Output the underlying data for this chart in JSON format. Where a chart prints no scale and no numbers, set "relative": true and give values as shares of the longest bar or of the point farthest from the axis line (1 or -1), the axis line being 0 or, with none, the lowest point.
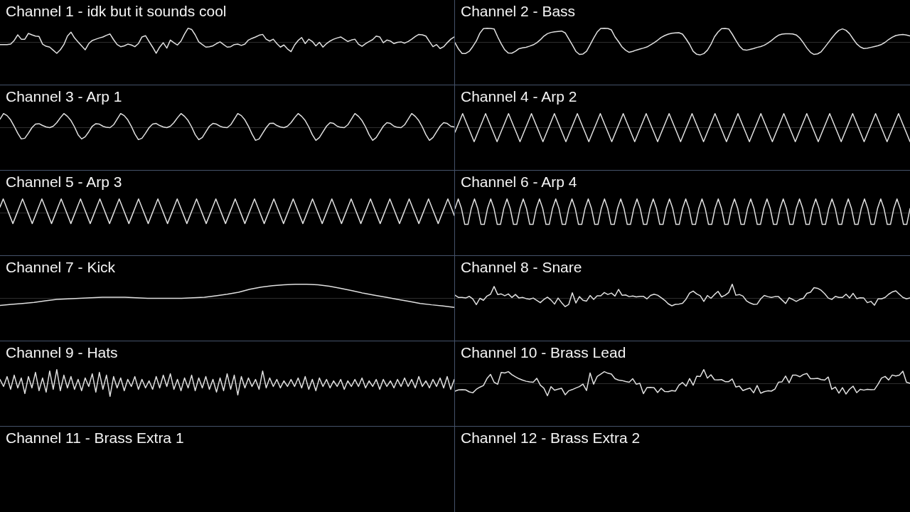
{
  "chart_data": [
    {
      "type": "line",
      "title": "Channel 1 - idk but it sounds cool",
      "relative": true,
      "marker": "none",
      "color": "#e0e0e0",
      "categories": [
        null,
        null,
        null,
        null,
        null,
        null,
        null,
        null,
        null,
        null,
        null,
        null,
        null,
        null,
        null,
        null,
        null,
        null,
        null,
        null,
        null,
        null,
        null,
        null,
        null,
        null,
        null,
        null,
        null,
        null,
        null,
        null,
        null,
        null,
        null,
        null,
        null,
        null,
        null,
        null,
        null,
        null,
        null,
        null,
        null,
        null,
        null,
        null,
        null,
        null,
        null,
        null,
        null,
        null,
        null,
        null,
        null,
        null,
        null,
        null,
        null,
        null,
        null,
        null,
        null,
        null,
        null,
        null,
        null,
        null,
        null,
        null,
        null,
        null,
        null,
        null,
        null,
        null,
        null,
        null,
        null,
        null,
        null,
        null,
        null,
        null,
        null,
        null,
        null,
        null,
        null,
        null,
        null,
        null,
        null,
        null,
        null,
        null,
        null,
        null,
        null,
        null,
        null,
        null,
        null,
        null,
        null,
        null,
        null,
        null,
        null,
        null,
        null,
        null,
        null,
        null,
        null,
        null,
        null,
        null,
        null,
        null,
        null,
        null,
        null,
        null,
        null,
        null,
        null
      ],
      "values": [
        -0.16,
        -0.16,
        -0.16,
        -0.13,
        0.13,
        0.53,
        0.22,
        0.22,
        0.63,
        0.53,
        0.44,
        0.41,
        -0.13,
        -0.28,
        -0.34,
        -0.56,
        -0.78,
        -0.53,
        -0.16,
        0.44,
        0.72,
        0.31,
        0.03,
        -0.25,
        -0.53,
        -0.09,
        0.13,
        0.22,
        0.31,
        0.38,
        0.5,
        0.59,
        0.19,
        -0.16,
        -0.31,
        -0.25,
        -0.13,
        -0.19,
        -0.31,
        -0.09,
        0.38,
        0.47,
        0.06,
        -0.34,
        -0.78,
        -0.34,
        -0.03,
        -0.41,
        0.16,
        -0.03,
        -0.19,
        0.09,
        0.59,
        1,
        0.91,
        0.53,
        0.03,
        -0.16,
        -0.34,
        -0.31,
        -0.25,
        -0.09,
        0.03,
        -0.16,
        -0.34,
        -0.31,
        -0.16,
        -0.13,
        -0.22,
        -0.13,
        0.16,
        0.28,
        0.38,
        0.5,
        0.56,
        0.22,
        0.09,
        0.22,
        -0.09,
        -0.34,
        -0.19,
        -0.47,
        -0.66,
        -0.19,
        0.13,
        0.34,
        -0.09,
        0.22,
        0.06,
        -0.25,
        0,
        -0.34,
        -0.09,
        0.09,
        0.22,
        0.31,
        0.38,
        0.22,
        0.06,
        0.16,
        0.22,
        -0.13,
        -0.28,
        -0.09,
        0.06,
        0.19,
        0.44,
        0.38,
        -0.03,
        0.16,
        0.09,
        -0.09,
        0,
        0.03,
        -0.06,
        0.06,
        0.22,
        0.41,
        0.56,
        0.53,
        0.44,
        0.06,
        -0.31,
        -0.16,
        -0.44,
        -0.31,
        -0.03,
        0.22,
        0.38
      ]
    },
    {
      "type": "line",
      "title": "Channel 2 - Bass",
      "relative": true,
      "marker": "none",
      "color": "#e0e0e0",
      "categories": [
        null,
        null,
        null,
        null,
        null,
        null,
        null,
        null,
        null,
        null,
        null,
        null,
        null,
        null,
        null,
        null,
        null,
        null,
        null,
        null,
        null,
        null,
        null,
        null,
        null,
        null,
        null,
        null,
        null,
        null,
        null,
        null,
        null,
        null,
        null,
        null,
        null,
        null,
        null,
        null,
        null,
        null,
        null,
        null,
        null,
        null,
        null,
        null,
        null,
        null,
        null,
        null,
        null,
        null,
        null,
        null,
        null,
        null,
        null,
        null,
        null,
        null,
        null,
        null,
        null,
        null,
        null,
        null,
        null,
        null,
        null,
        null,
        null,
        null,
        null,
        null,
        null,
        null,
        null,
        null,
        null,
        null,
        null,
        null,
        null,
        null,
        null,
        null,
        null,
        null,
        null,
        null,
        null,
        null,
        null,
        null,
        null,
        null,
        null,
        null,
        null,
        null,
        null,
        null,
        null,
        null,
        null,
        null,
        null,
        null,
        null,
        null,
        null,
        null,
        null,
        null,
        null,
        null,
        null,
        null,
        null,
        null,
        null,
        null,
        null,
        null,
        null,
        null,
        null
      ],
      "values": [
        -0.03,
        -0.48,
        -0.79,
        -0.79,
        -0.64,
        -0.3,
        0.09,
        0.65,
        0.97,
        1,
        0.98,
        0.95,
        0.39,
        -0.11,
        -0.53,
        -0.76,
        -0.77,
        -0.64,
        -0.45,
        -0.39,
        -0.35,
        -0.27,
        -0.18,
        -0.03,
        0.18,
        0.44,
        0.61,
        0.7,
        0.74,
        0.77,
        0.8,
        0.67,
        0.24,
        -0.18,
        -0.64,
        -0.86,
        -0.83,
        -0.64,
        -0.18,
        0.3,
        0.73,
        0.98,
        1,
        0.98,
        0.88,
        0.39,
        0.05,
        -0.33,
        -0.56,
        -0.71,
        -0.64,
        -0.55,
        -0.48,
        -0.41,
        -0.33,
        -0.18,
        -0.03,
        0.15,
        0.35,
        0.48,
        0.58,
        0.64,
        0.67,
        0.68,
        0.58,
        0.24,
        -0.15,
        -0.64,
        -0.85,
        -0.89,
        -0.8,
        -0.56,
        -0.15,
        0.39,
        0.73,
        0.97,
        0.98,
        0.95,
        0.58,
        0.15,
        -0.26,
        -0.52,
        -0.56,
        -0.5,
        -0.44,
        -0.36,
        -0.3,
        -0.21,
        -0.06,
        0.12,
        0.33,
        0.5,
        0.58,
        0.61,
        0.61,
        0.59,
        0.52,
        0.3,
        -0.03,
        -0.41,
        -0.71,
        -0.86,
        -0.82,
        -0.67,
        -0.36,
        -0.03,
        0.3,
        0.61,
        0.85,
        0.95,
        0.85,
        0.61,
        0.24,
        -0.11,
        -0.33,
        -0.44,
        -0.42,
        -0.36,
        -0.3,
        -0.24,
        -0.15,
        0,
        0.2,
        0.36,
        0.48,
        0.53,
        0.55,
        0.52,
        0.45
      ]
    },
    {
      "type": "line",
      "title": "Channel 3 - Arp 1",
      "relative": true,
      "marker": "none",
      "color": "#e0e0e0",
      "categories": [
        null,
        null,
        null,
        null,
        null,
        null,
        null,
        null,
        null,
        null,
        null,
        null,
        null,
        null,
        null,
        null,
        null,
        null,
        null,
        null,
        null,
        null,
        null,
        null,
        null,
        null,
        null,
        null,
        null,
        null,
        null,
        null,
        null,
        null,
        null,
        null,
        null,
        null,
        null,
        null,
        null,
        null,
        null,
        null,
        null,
        null,
        null,
        null,
        null,
        null,
        null,
        null,
        null,
        null,
        null,
        null,
        null,
        null,
        null,
        null,
        null,
        null,
        null,
        null,
        null,
        null,
        null,
        null,
        null,
        null,
        null,
        null,
        null,
        null,
        null,
        null,
        null,
        null,
        null,
        null,
        null,
        null,
        null,
        null,
        null,
        null,
        null,
        null,
        null,
        null,
        null,
        null,
        null,
        null,
        null,
        null,
        null,
        null,
        null,
        null,
        null,
        null,
        null,
        null,
        null,
        null,
        null,
        null,
        null,
        null,
        null,
        null,
        null,
        null,
        null,
        null,
        null,
        null,
        null,
        null,
        null,
        null,
        null,
        null,
        null,
        null,
        null,
        null,
        null
      ],
      "values": [
        0.6,
        1,
        0.85,
        0.55,
        0.1,
        -0.4,
        -0.8,
        -0.75,
        -0.4,
        0,
        0.25,
        0.28,
        0.15,
        0.05,
        0,
        0.1,
        0.35,
        0.7,
        1,
        0.8,
        0.5,
        0.05,
        -0.5,
        -0.8,
        -0.65,
        -0.3,
        0.1,
        0.28,
        0.25,
        0.1,
        0.02,
        0,
        0.2,
        0.6,
        1,
        0.85,
        0.55,
        0.1,
        -0.45,
        -0.85,
        -0.75,
        -0.4,
        0,
        0.25,
        0.3,
        0.15,
        0.05,
        0,
        0.1,
        0.35,
        0.7,
        1,
        0.8,
        0.5,
        0.05,
        -0.5,
        -0.85,
        -0.7,
        -0.3,
        0.1,
        0.3,
        0.25,
        0.1,
        0.02,
        0,
        0.2,
        0.6,
        1,
        0.85,
        0.55,
        0.1,
        -0.45,
        -0.9,
        -0.8,
        -0.4,
        0,
        0.3,
        0.32,
        0.15,
        0.05,
        0,
        0.1,
        0.35,
        0.7,
        1,
        0.8,
        0.5,
        0.05,
        -0.5,
        -0.9,
        -0.7,
        -0.3,
        0.1,
        0.35,
        0.3,
        0.1,
        0.02,
        0,
        0.2,
        0.6,
        1,
        0.8,
        0.5,
        0.05,
        -0.5,
        -0.9,
        -0.7,
        -0.3,
        0.1,
        0.35,
        0.3,
        0.1,
        0.02,
        0,
        0.2,
        0.6,
        1,
        0.8,
        0.5,
        0.05,
        -0.5,
        -0.9,
        -0.7,
        -0.3,
        0.1,
        0.35,
        0.3,
        0.1,
        0.05
      ]
    },
    {
      "type": "line",
      "title": "Channel 4 - Arp 2",
      "relative": true,
      "marker": "none",
      "color": "#e0e0e0",
      "categories": [
        null,
        null,
        null,
        null,
        null,
        null,
        null,
        null,
        null,
        null,
        null,
        null,
        null,
        null,
        null,
        null,
        null,
        null,
        null,
        null,
        null,
        null,
        null,
        null,
        null,
        null,
        null,
        null,
        null,
        null,
        null,
        null,
        null,
        null,
        null,
        null,
        null,
        null,
        null,
        null,
        null,
        null,
        null,
        null,
        null,
        null,
        null,
        null,
        null,
        null,
        null,
        null,
        null,
        null,
        null,
        null,
        null,
        null,
        null,
        null,
        null,
        null,
        null,
        null,
        null,
        null,
        null,
        null,
        null,
        null,
        null,
        null,
        null,
        null,
        null,
        null,
        null,
        null,
        null,
        null,
        null,
        null,
        null,
        null,
        null,
        null,
        null,
        null,
        null,
        null,
        null,
        null,
        null,
        null,
        null,
        null,
        null,
        null,
        null,
        null,
        null,
        null,
        null,
        null,
        null,
        null,
        null,
        null,
        null,
        null,
        null,
        null,
        null,
        null,
        null,
        null,
        null,
        null,
        null,
        null
      ],
      "values": [
        -0.33,
        0.33,
        1,
        0.33,
        -0.33,
        -1,
        -0.33,
        0.33,
        1,
        0.33,
        -0.33,
        -1,
        -0.33,
        0.33,
        1,
        0.33,
        -0.33,
        -1,
        -0.33,
        0.33,
        1,
        0.33,
        -0.33,
        -1,
        -0.33,
        0.33,
        1,
        0.33,
        -0.33,
        -1,
        -0.33,
        0.33,
        1,
        0.33,
        -0.33,
        -1,
        -0.33,
        0.33,
        1,
        0.33,
        -0.33,
        -1,
        -0.33,
        0.33,
        1,
        0.33,
        -0.33,
        -1,
        -0.33,
        0.33,
        1,
        0.33,
        -0.33,
        -1,
        -0.33,
        0.33,
        1,
        0.33,
        -0.33,
        -1,
        -0.33,
        0.33,
        1,
        0.33,
        -0.33,
        -1,
        -0.33,
        0.33,
        1,
        0.33,
        -0.33,
        -1,
        -0.33,
        0.33,
        1,
        0.33,
        -0.33,
        -1,
        -0.33,
        0.33,
        1,
        0.33,
        -0.33,
        -1,
        -0.33,
        0.33,
        1,
        0.33,
        -0.33,
        -1,
        -0.33,
        0.33,
        1,
        0.33,
        -0.33,
        -1,
        -0.33,
        0.33,
        1,
        0.33,
        -0.33,
        -1,
        -0.33,
        0.33,
        1,
        0.33,
        -0.33,
        -1,
        -0.33,
        0.33,
        1,
        0.33,
        -0.33,
        -1,
        -0.33,
        0.33,
        1,
        0.33,
        -0.33,
        -1
      ]
    },
    {
      "type": "line",
      "title": "Channel 5 - Arp 3",
      "relative": true,
      "marker": "none",
      "color": "#e0e0e0",
      "categories": [
        null,
        null,
        null,
        null,
        null,
        null,
        null,
        null,
        null,
        null,
        null,
        null,
        null,
        null,
        null,
        null,
        null,
        null,
        null,
        null,
        null,
        null,
        null,
        null,
        null,
        null,
        null,
        null,
        null,
        null,
        null,
        null,
        null,
        null,
        null,
        null,
        null,
        null,
        null,
        null,
        null,
        null,
        null,
        null,
        null,
        null,
        null,
        null,
        null,
        null,
        null,
        null,
        null,
        null,
        null,
        null,
        null,
        null,
        null,
        null,
        null,
        null,
        null,
        null,
        null,
        null,
        null,
        null,
        null,
        null,
        null,
        null,
        null,
        null,
        null,
        null,
        null,
        null,
        null,
        null,
        null,
        null,
        null,
        null,
        null,
        null,
        null,
        null,
        null,
        null,
        null,
        null,
        null,
        null,
        null,
        null,
        null,
        null,
        null,
        null,
        null,
        null,
        null,
        null,
        null,
        null,
        null,
        null,
        null,
        null,
        null,
        null,
        null,
        null,
        null,
        null,
        null,
        null,
        null,
        null,
        null,
        null,
        null,
        null,
        null,
        null,
        null,
        null,
        null,
        null,
        null,
        null,
        null,
        null,
        null,
        null,
        null,
        null,
        null,
        null,
        null,
        null
      ],
      "values": [
        0.42,
        1,
        0.42,
        -0.17,
        -0.75,
        -0.17,
        0.42,
        1,
        0.42,
        -0.17,
        -0.75,
        -0.17,
        0.42,
        1,
        0.42,
        -0.17,
        -0.75,
        -0.17,
        0.42,
        1,
        0.42,
        -0.17,
        -0.75,
        -0.17,
        0.42,
        1,
        0.42,
        -0.17,
        -0.75,
        -0.17,
        0.42,
        1,
        0.42,
        -0.17,
        -0.75,
        -0.17,
        0.42,
        1,
        0.42,
        -0.17,
        -0.75,
        -0.17,
        0.42,
        1,
        0.42,
        -0.17,
        -0.75,
        -0.17,
        0.42,
        1,
        0.42,
        -0.17,
        -0.75,
        -0.17,
        0.42,
        1,
        0.42,
        -0.17,
        -0.75,
        -0.17,
        0.42,
        1,
        0.42,
        -0.17,
        -0.75,
        -0.17,
        0.42,
        1,
        0.42,
        -0.17,
        -0.75,
        -0.17,
        0.42,
        1,
        0.42,
        -0.17,
        -0.75,
        -0.17,
        0.42,
        1,
        0.42,
        -0.17,
        -0.75,
        -0.17,
        0.42,
        1,
        0.42,
        -0.17,
        -0.75,
        -0.17,
        0.42,
        1,
        0.42,
        -0.17,
        -0.75,
        -0.17,
        0.42,
        1,
        0.42,
        -0.17,
        -0.75,
        -0.17,
        0.42,
        1,
        0.42,
        -0.17,
        -0.75,
        -0.17,
        0.42,
        1,
        0.42,
        -0.17,
        -0.75,
        -0.17,
        0.42,
        1,
        0.42,
        -0.17,
        -0.75,
        -0.17,
        0.42,
        1,
        0.42,
        -0.17,
        -0.75,
        -0.17,
        0.42,
        1,
        0.42,
        -0.17,
        -0.75,
        -0.17,
        0.42,
        1,
        0.42,
        -0.17,
        -0.75,
        -0.17,
        0.42,
        1,
        0.42,
        -0.17
      ]
    },
    {
      "type": "line",
      "title": "Channel 6 - Arp 4",
      "relative": true,
      "marker": "none",
      "color": "#e0e0e0",
      "categories": [
        null,
        null,
        null,
        null,
        null,
        null,
        null,
        null,
        null,
        null,
        null,
        null,
        null,
        null,
        null,
        null,
        null,
        null,
        null,
        null,
        null,
        null,
        null,
        null,
        null,
        null,
        null,
        null,
        null,
        null,
        null,
        null,
        null,
        null,
        null,
        null,
        null,
        null,
        null,
        null,
        null,
        null,
        null,
        null,
        null,
        null,
        null,
        null,
        null,
        null,
        null,
        null,
        null,
        null,
        null,
        null,
        null,
        null,
        null,
        null,
        null,
        null,
        null,
        null,
        null,
        null,
        null,
        null,
        null,
        null,
        null,
        null,
        null,
        null,
        null,
        null,
        null,
        null,
        null,
        null,
        null,
        null,
        null,
        null,
        null,
        null,
        null,
        null,
        null,
        null,
        null,
        null,
        null,
        null,
        null,
        null,
        null,
        null,
        null,
        null,
        null,
        null,
        null,
        null,
        null,
        null,
        null,
        null,
        null,
        null,
        null,
        null,
        null,
        null,
        null,
        null,
        null,
        null,
        null,
        null,
        null,
        null,
        null,
        null,
        null,
        null,
        null,
        null,
        null,
        null,
        null,
        null,
        null,
        null,
        null,
        null,
        null,
        null,
        null,
        null,
        null
      ],
      "values": [
        0.31,
        1,
        0.31,
        -0.81,
        -0.81,
        0.31,
        1,
        0.31,
        -0.81,
        -0.81,
        0.31,
        1,
        0.31,
        -0.81,
        -0.81,
        0.31,
        1,
        0.31,
        -0.81,
        -0.81,
        0.31,
        1,
        0.31,
        -0.81,
        -0.81,
        0.31,
        1,
        0.31,
        -0.81,
        -0.81,
        0.31,
        1,
        0.31,
        -0.81,
        -0.81,
        0.31,
        1,
        0.31,
        -0.81,
        -0.81,
        0.31,
        1,
        0.31,
        -0.81,
        -0.81,
        0.31,
        1,
        0.31,
        -0.81,
        -0.81,
        0.31,
        1,
        0.31,
        -0.81,
        -0.81,
        0.31,
        1,
        0.31,
        -0.81,
        -0.81,
        0.31,
        1,
        0.31,
        -0.81,
        -0.81,
        0.31,
        1,
        0.31,
        -0.81,
        -0.81,
        0.31,
        1,
        0.31,
        -0.81,
        -0.81,
        0.31,
        1,
        0.31,
        -0.81,
        -0.81,
        0.31,
        1,
        0.31,
        -0.81,
        -0.81,
        0.31,
        1,
        0.31,
        -0.81,
        -0.81,
        0.31,
        1,
        0.31,
        -0.81,
        -0.81,
        0.31,
        1,
        0.31,
        -0.81,
        -0.81,
        0.31,
        1,
        0.31,
        -0.81,
        -0.81,
        0.31,
        1,
        0.31,
        -0.81,
        -0.81,
        0.31,
        1,
        0.31,
        -0.81,
        -0.81,
        0.31,
        1,
        0.31,
        -0.81,
        -0.81,
        0.31,
        1,
        0.31,
        -0.81,
        -0.81,
        0.31,
        1,
        0.31,
        -0.81,
        -0.81,
        0.31,
        1,
        0.31,
        -0.81,
        -0.81,
        0.31,
        1,
        0.31,
        -0.81,
        -0.81,
        0.31
      ]
    },
    {
      "type": "line",
      "title": "Channel 7 - Kick",
      "relative": true,
      "marker": "none",
      "color": "#e0e0e0",
      "categories": [
        null,
        null,
        null,
        null,
        null,
        null,
        null,
        null,
        null,
        null,
        null,
        null,
        null,
        null,
        null,
        null,
        null,
        null,
        null,
        null,
        null,
        null,
        null,
        null,
        null,
        null,
        null,
        null,
        null,
        null,
        null,
        null,
        null,
        null,
        null,
        null,
        null,
        null,
        null,
        null,
        null
      ],
      "values": [
        -0.5,
        -0.43,
        -0.36,
        -0.29,
        -0.18,
        -0.07,
        -0.04,
        0,
        0.04,
        0.07,
        0.07,
        0.07,
        0.04,
        0,
        0,
        0,
        0,
        0.04,
        0.07,
        0.18,
        0.29,
        0.43,
        0.64,
        0.79,
        0.89,
        0.96,
        1,
        1,
        0.96,
        0.86,
        0.71,
        0.54,
        0.36,
        0.21,
        0.07,
        -0.07,
        -0.21,
        -0.36,
        -0.46,
        -0.54,
        -0.64
      ]
    },
    {
      "type": "line",
      "title": "Channel 8 - Snare",
      "relative": true,
      "marker": "none",
      "color": "#e0e0e0",
      "categories": [
        null,
        null,
        null,
        null,
        null,
        null,
        null,
        null,
        null,
        null,
        null,
        null,
        null,
        null,
        null,
        null,
        null,
        null,
        null,
        null,
        null,
        null,
        null,
        null,
        null,
        null,
        null,
        null,
        null,
        null,
        null,
        null,
        null,
        null,
        null,
        null,
        null,
        null,
        null,
        null,
        null,
        null,
        null,
        null,
        null,
        null,
        null,
        null,
        null,
        null,
        null,
        null,
        null,
        null,
        null,
        null,
        null,
        null,
        null,
        null,
        null,
        null,
        null,
        null,
        null,
        null,
        null,
        null,
        null,
        null,
        null,
        null,
        null,
        null,
        null,
        null,
        null,
        null,
        null,
        null,
        null,
        null,
        null,
        null,
        null,
        null,
        null,
        null,
        null,
        null,
        null,
        null,
        null,
        null,
        null,
        null,
        null,
        null,
        null,
        null,
        null,
        null,
        null,
        null,
        null,
        null,
        null,
        null,
        null,
        null,
        null,
        null,
        null,
        null,
        null,
        null,
        null,
        null,
        null,
        null,
        null,
        null,
        null,
        null,
        null,
        null,
        null,
        null,
        null
      ],
      "values": [
        0.22,
        0.06,
        0.06,
        0.02,
        0.14,
        -0.04,
        -0.45,
        0,
        -0.14,
        0.16,
        0.29,
        0.84,
        0.27,
        0.31,
        0.18,
        0.31,
        0.06,
        0.27,
        0.02,
        0.06,
        -0.02,
        -0.06,
        0.02,
        -0.14,
        -0.31,
        -0.08,
        0.08,
        -0.12,
        -0.41,
        0.02,
        -0.31,
        -0.59,
        -0.43,
        0.39,
        -0.33,
        0.12,
        -0.14,
        -0.2,
        0.2,
        -0.08,
        0.18,
        0.18,
        0.41,
        0.27,
        0.37,
        0.16,
        0.63,
        0.22,
        0.24,
        0.12,
        0.16,
        0.1,
        0.14,
        0.14,
        -0.04,
        0.2,
        0.29,
        0.22,
        0.04,
        -0.14,
        -0.39,
        -0.53,
        -0.43,
        -0.41,
        -0.35,
        -0.06,
        0.37,
        0.51,
        0.31,
        0.18,
        -0.22,
        0.2,
        0,
        0.27,
        0.49,
        0.1,
        0.22,
        0.41,
        1,
        0.22,
        0.27,
        0.16,
        -0.18,
        -0.33,
        -0.43,
        -0.41,
        -0.04,
        0.2,
        0.12,
        0.06,
        0.12,
        0.12,
        -0.12,
        -0.37,
        0.04,
        -0.08,
        -0.22,
        -0.08,
        0,
        0.35,
        0.43,
        0.76,
        0.71,
        0.57,
        0.33,
        0.02,
        -0.08,
        0.14,
        0.06,
        0.06,
        0.29,
        0.02,
        0.35,
        -0.02,
        0.04,
        0.02,
        -0.31,
        -0.22,
        -0.49,
        -0.04,
        -0.04,
        0.06,
        0.29,
        0.45,
        0.53,
        0.29,
        0.06,
        -0.04,
        0.02
      ]
    },
    {
      "type": "line",
      "title": "Channel 9 - Hats",
      "relative": true,
      "marker": "none",
      "color": "#e0e0e0",
      "categories": [
        null,
        null,
        null,
        null,
        null,
        null,
        null,
        null,
        null,
        null,
        null,
        null,
        null,
        null,
        null,
        null,
        null,
        null,
        null,
        null,
        null,
        null,
        null,
        null,
        null,
        null,
        null,
        null,
        null,
        null,
        null,
        null,
        null,
        null,
        null,
        null,
        null,
        null,
        null,
        null,
        null,
        null,
        null,
        null,
        null,
        null,
        null,
        null,
        null,
        null,
        null,
        null,
        null,
        null,
        null,
        null,
        null,
        null,
        null,
        null,
        null,
        null,
        null,
        null,
        null,
        null,
        null,
        null,
        null,
        null,
        null,
        null,
        null,
        null,
        null,
        null,
        null,
        null,
        null,
        null,
        null,
        null,
        null,
        null,
        null,
        null,
        null,
        null,
        null,
        null,
        null,
        null,
        null,
        null,
        null,
        null,
        null,
        null,
        null,
        null,
        null,
        null,
        null,
        null,
        null,
        null,
        null,
        null,
        null,
        null,
        null,
        null,
        null,
        null,
        null,
        null,
        null,
        null,
        null,
        null,
        null,
        null,
        null,
        null,
        null,
        null,
        null,
        null,
        null
      ],
      "values": [
        0.3,
        -0.2,
        0.5,
        -0.4,
        0.6,
        -0.3,
        0.4,
        -0.7,
        0.5,
        -0.3,
        0.8,
        -0.5,
        0.4,
        -0.6,
        0.9,
        -0.4,
        1,
        -0.5,
        0.6,
        -0.3,
        0.5,
        -0.4,
        0.3,
        -0.5,
        0.4,
        -0.2,
        0.7,
        -0.6,
        0.8,
        -0.4,
        0.6,
        -0.9,
        0.5,
        -0.3,
        0.4,
        -0.5,
        0.3,
        -0.2,
        0.5,
        -0.4,
        0.3,
        -0.3,
        0.2,
        -0.4,
        0.5,
        -0.3,
        0.6,
        -0.2,
        0.7,
        -0.4,
        0.3,
        -0.5,
        0.4,
        -0.3,
        0.6,
        -0.5,
        0.4,
        -0.3,
        0.5,
        -0.4,
        0.3,
        -0.6,
        0.4,
        -0.5,
        0.7,
        -0.4,
        0.6,
        -0.8,
        0.5,
        -0.3,
        0.4,
        -0.2,
        0.3,
        -0.4,
        0.9,
        -0.3,
        0.4,
        -0.2,
        0.3,
        -0.3,
        0.2,
        -0.2,
        0.3,
        -0.2,
        0.4,
        -0.3,
        0.5,
        -0.4,
        0.3,
        -0.5,
        0.4,
        -0.2,
        0.3,
        -0.3,
        0.2,
        -0.2,
        0.3,
        -0.4,
        0.2,
        -0.2,
        0.3,
        -0.2,
        0.4,
        -0.3,
        0.2,
        -0.2,
        0.3,
        -0.4,
        0.3,
        -0.2,
        0.2,
        -0.3,
        0.3,
        -0.2,
        0.4,
        -0.2,
        0.3,
        -0.3,
        0.5,
        -0.2,
        0.2,
        -0.3,
        0.3,
        -0.2,
        0.4,
        -0.3,
        0.5,
        -0.4,
        0.3
      ]
    },
    {
      "type": "line",
      "title": "Channel 10 - Brass Lead",
      "relative": true,
      "marker": "none",
      "color": "#e0e0e0",
      "categories": [
        null,
        null,
        null,
        null,
        null,
        null,
        null,
        null,
        null,
        null,
        null,
        null,
        null,
        null,
        null,
        null,
        null,
        null,
        null,
        null,
        null,
        null,
        null,
        null,
        null,
        null,
        null,
        null,
        null,
        null,
        null,
        null,
        null,
        null,
        null,
        null,
        null,
        null,
        null,
        null,
        null,
        null,
        null,
        null,
        null,
        null,
        null,
        null,
        null,
        null,
        null,
        null,
        null,
        null,
        null,
        null,
        null,
        null,
        null,
        null,
        null,
        null,
        null,
        null,
        null,
        null,
        null,
        null,
        null,
        null,
        null,
        null,
        null,
        null,
        null,
        null,
        null,
        null,
        null,
        null,
        null,
        null,
        null,
        null,
        null,
        null,
        null,
        null,
        null,
        null,
        null,
        null,
        null,
        null,
        null,
        null,
        null,
        null,
        null,
        null,
        null,
        null,
        null,
        null,
        null,
        null,
        null,
        null,
        null,
        null,
        null,
        null,
        null,
        null,
        null,
        null,
        null,
        null,
        null,
        null,
        null,
        null,
        null,
        null,
        null,
        null,
        null,
        null,
        null
      ],
      "values": [
        -0.53,
        -0.44,
        -0.43,
        -0.44,
        -0.58,
        -0.65,
        -0.4,
        -0.25,
        -0.13,
        0.36,
        0.65,
        0.1,
        -0.04,
        0.79,
        0.76,
        0.85,
        0.64,
        0.49,
        0.35,
        0.25,
        0.17,
        0.13,
        0.1,
        0.38,
        -0.11,
        -0.32,
        -0.86,
        -0.21,
        -0.47,
        -0.39,
        -0.33,
        -0.79,
        -0.51,
        -0.42,
        -0.31,
        -0.21,
        -0.03,
        -0.49,
        0.76,
        -0.04,
        0.51,
        0.68,
        0.85,
        0.74,
        0.68,
        0.35,
        0.25,
        0.22,
        0.15,
        0.1,
        0.35,
        -0.04,
        0.03,
        -0.71,
        -0.28,
        -0.26,
        -0.29,
        -0.63,
        -0.33,
        -0.56,
        -0.57,
        -0.49,
        -0.53,
        -0.11,
        0.08,
        -0.18,
        0.36,
        -0.11,
        0.53,
        0.51,
        1,
        0.39,
        0.63,
        0.28,
        0.26,
        0.29,
        0.14,
        0.14,
        0.33,
        -0.24,
        -0.18,
        -0.49,
        -0.39,
        -0.32,
        -0.65,
        -0.13,
        -0.68,
        -0.57,
        -0.51,
        -0.53,
        -0.38,
        0.1,
        0.13,
        0.54,
        0.06,
        0.61,
        0.6,
        0.49,
        0.65,
        0.72,
        0.35,
        0.35,
        0.38,
        0.29,
        0.25,
        0.47,
        -0.4,
        -0.24,
        -0.67,
        -0.28,
        -0.74,
        -0.39,
        -0.18,
        -0.64,
        -0.4,
        -0.46,
        -0.4,
        -0.43,
        -0.42,
        -0.04,
        0.4,
        0.51,
        0.26,
        0.61,
        0.54,
        0.6,
        0.88,
        0.1,
        0.03
      ]
    },
    {
      "type": "other",
      "title": "Channel 11 - Brass Extra 1"
    },
    {
      "type": "other",
      "title": "Channel 12 - Brass Extra 2"
    }
  ]
}
